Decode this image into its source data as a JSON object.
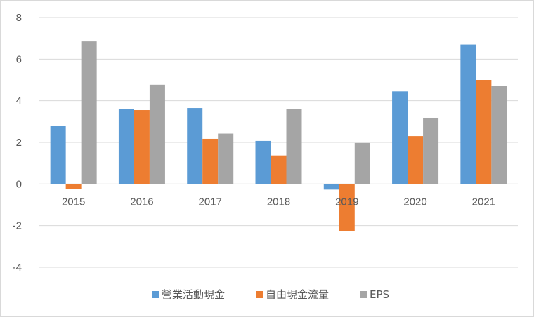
{
  "chart_data": {
    "type": "bar",
    "title": "",
    "xlabel": "",
    "ylabel": "",
    "categories": [
      "2015",
      "2016",
      "2017",
      "2018",
      "2019",
      "2020",
      "2021"
    ],
    "series": [
      {
        "name": "營業活動現金",
        "color": "#5b9bd5",
        "values": [
          2.8,
          3.6,
          3.65,
          2.07,
          -0.27,
          4.45,
          6.7
        ]
      },
      {
        "name": "自由現金流量",
        "color": "#ed7d31",
        "values": [
          -0.25,
          3.55,
          2.17,
          1.37,
          -2.27,
          2.3,
          5.0
        ]
      },
      {
        "name": "EPS",
        "color": "#a5a5a5",
        "values": [
          6.85,
          4.77,
          2.42,
          3.6,
          1.97,
          3.18,
          4.73
        ]
      }
    ],
    "ylim": [
      -4,
      8
    ],
    "yticks": [
      "8",
      "6",
      "4",
      "2",
      "0",
      "-2",
      "-4"
    ],
    "grid": true,
    "legend": "bottom"
  }
}
